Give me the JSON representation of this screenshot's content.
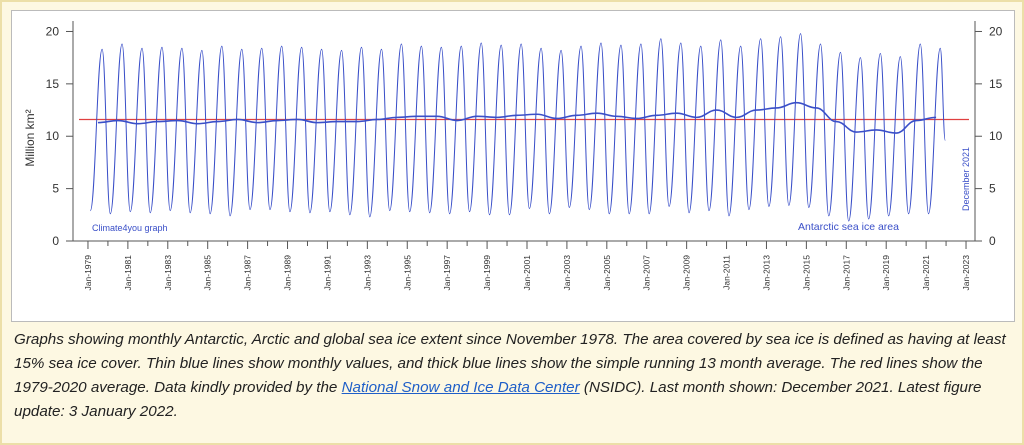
{
  "chart_data": {
    "type": "line",
    "y_label": "Million km²",
    "annotations": {
      "credit": "Climate4you graph",
      "series_label": "Antarctic sea ice area",
      "last_month": "December 2021"
    },
    "xlim": [
      1978.25,
      2023.45
    ],
    "xticks": [
      {
        "value": 1979,
        "label": "Jan-1979"
      },
      {
        "value": 1981,
        "label": "Jan-1981"
      },
      {
        "value": 1983,
        "label": "Jan-1983"
      },
      {
        "value": 1985,
        "label": "Jan-1985"
      },
      {
        "value": 1987,
        "label": "Jan-1987"
      },
      {
        "value": 1989,
        "label": "Jan-1989"
      },
      {
        "value": 1991,
        "label": "Jan-1991"
      },
      {
        "value": 1993,
        "label": "Jan-1993"
      },
      {
        "value": 1995,
        "label": "Jan-1995"
      },
      {
        "value": 1997,
        "label": "Jan-1997"
      },
      {
        "value": 1999,
        "label": "Jan-1999"
      },
      {
        "value": 2001,
        "label": "Jan-2001"
      },
      {
        "value": 2003,
        "label": "Jan-2003"
      },
      {
        "value": 2005,
        "label": "Jan-2005"
      },
      {
        "value": 2007,
        "label": "Jan-2007"
      },
      {
        "value": 2009,
        "label": "Jan-2009"
      },
      {
        "value": 2011,
        "label": "Jan-2011"
      },
      {
        "value": 2013,
        "label": "Jan-2013"
      },
      {
        "value": 2015,
        "label": "Jan-2015"
      },
      {
        "value": 2017,
        "label": "Jan-2017"
      },
      {
        "value": 2019,
        "label": "Jan-2019"
      },
      {
        "value": 2021,
        "label": "Jan-2021"
      },
      {
        "value": 2023,
        "label": "Jan-2023"
      }
    ],
    "xminorticks": [
      1980,
      1982,
      1984,
      1986,
      1988,
      1990,
      1992,
      1994,
      1996,
      1998,
      2000,
      2002,
      2004,
      2006,
      2008,
      2010,
      2012,
      2014,
      2016,
      2018,
      2020,
      2022
    ],
    "ylim": [
      0,
      21
    ],
    "yticks": [
      0,
      5,
      10,
      15,
      20
    ],
    "y2lim": [
      0,
      21
    ],
    "y2ticks": [
      0,
      5,
      10,
      15,
      20
    ],
    "average": 11.6,
    "average_color": "#e04040",
    "series": [
      {
        "color": "#3a4fc8",
        "width": 1,
        "x": [
          1979.12,
          1979.71,
          1980.12,
          1980.71,
          1981.12,
          1981.71,
          1982.12,
          1982.71,
          1983.12,
          1983.71,
          1984.12,
          1984.71,
          1985.12,
          1985.71,
          1986.12,
          1986.71,
          1987.12,
          1987.71,
          1988.12,
          1988.71,
          1989.12,
          1989.71,
          1990.12,
          1990.71,
          1991.12,
          1991.71,
          1992.12,
          1992.71,
          1993.12,
          1993.71,
          1994.12,
          1994.71,
          1995.12,
          1995.71,
          1996.12,
          1996.71,
          1997.12,
          1997.71,
          1998.12,
          1998.71,
          1999.12,
          1999.71,
          2000.12,
          2000.71,
          2001.12,
          2001.71,
          2002.12,
          2002.71,
          2003.12,
          2003.71,
          2004.12,
          2004.71,
          2005.12,
          2005.71,
          2006.12,
          2006.71,
          2007.12,
          2007.71,
          2008.12,
          2008.71,
          2009.12,
          2009.71,
          2010.12,
          2010.71,
          2011.12,
          2011.71,
          2012.12,
          2012.71,
          2013.12,
          2013.71,
          2014.12,
          2014.71,
          2015.12,
          2015.71,
          2016.12,
          2016.71,
          2017.12,
          2017.71,
          2018.12,
          2018.71,
          2019.12,
          2019.71,
          2020.12,
          2020.71,
          2021.12,
          2021.71,
          2021.96
        ],
        "values": [
          2.9,
          18.3,
          2.6,
          18.8,
          2.8,
          18.4,
          2.7,
          18.5,
          2.9,
          18.4,
          2.7,
          18.2,
          2.6,
          18.6,
          2.4,
          18.3,
          3.0,
          18.4,
          3.0,
          18.6,
          2.8,
          18.5,
          2.7,
          18.3,
          2.8,
          18.2,
          2.5,
          18.5,
          2.3,
          18.3,
          2.9,
          18.8,
          2.8,
          18.6,
          2.7,
          18.5,
          2.6,
          18.6,
          2.8,
          18.9,
          2.5,
          18.7,
          2.5,
          18.8,
          3.1,
          18.4,
          2.6,
          18.2,
          3.2,
          18.6,
          3.0,
          18.9,
          2.6,
          18.7,
          2.6,
          18.8,
          2.6,
          19.3,
          3.3,
          18.9,
          2.7,
          18.6,
          2.9,
          19.2,
          2.4,
          18.6,
          3.0,
          19.3,
          3.3,
          19.5,
          3.4,
          19.8,
          3.2,
          18.8,
          2.4,
          18.0,
          1.9,
          17.5,
          2.1,
          17.9,
          2.4,
          17.6,
          2.6,
          18.8,
          2.6,
          18.4,
          9.6
        ]
      },
      {
        "color": "#3a4fc8",
        "width": 1.6,
        "x": [
          1979.5,
          1980.5,
          1981.5,
          1982.5,
          1983.5,
          1984.5,
          1985.5,
          1986.5,
          1987.5,
          1988.5,
          1989.5,
          1990.5,
          1991.5,
          1992.5,
          1993.5,
          1994.5,
          1995.5,
          1996.5,
          1997.5,
          1998.5,
          1999.5,
          2000.5,
          2001.5,
          2002.5,
          2003.5,
          2004.5,
          2005.5,
          2006.5,
          2007.5,
          2008.5,
          2009.5,
          2010.5,
          2011.5,
          2012.5,
          2013.5,
          2014.5,
          2015.5,
          2016.5,
          2017.5,
          2018.5,
          2019.5,
          2020.5,
          2021.5
        ],
        "values": [
          11.3,
          11.5,
          11.2,
          11.4,
          11.5,
          11.2,
          11.4,
          11.6,
          11.3,
          11.5,
          11.6,
          11.3,
          11.4,
          11.4,
          11.6,
          11.8,
          11.9,
          11.9,
          11.5,
          11.9,
          11.8,
          12.0,
          12.1,
          11.7,
          12.0,
          12.2,
          11.9,
          11.7,
          12.0,
          12.2,
          11.8,
          12.5,
          11.8,
          12.5,
          12.7,
          13.2,
          12.7,
          11.4,
          10.4,
          10.6,
          10.3,
          11.5,
          11.8
        ]
      }
    ]
  },
  "caption": {
    "before": "Graphs showing monthly Antarctic, Arctic and global sea ice extent since November 1978. The area covered by sea ice is defined as having at least 15% sea ice cover. Thin blue lines show monthly values, and thick blue lines show the simple running 13 month average. The red lines show the 1979-2020 average. Data kindly provided by the ",
    "link": "National Snow and Ice Data Center",
    "after": " (NSIDC). Last month shown: December 2021. Latest figure update: 3 January 2022."
  }
}
